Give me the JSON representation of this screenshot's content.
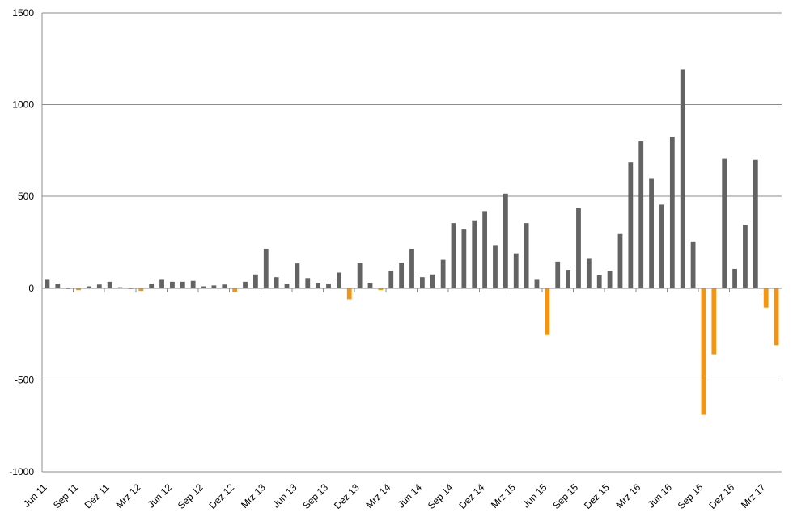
{
  "chart_data": {
    "type": "bar",
    "title": "",
    "xlabel": "",
    "ylabel": "",
    "ylim": [
      -1000,
      1500
    ],
    "y_ticks": [
      -1000,
      -500,
      0,
      500,
      1000,
      1500
    ],
    "y_tick_labels": [
      "-1000",
      "-500",
      "0",
      "500",
      "1000",
      "1500"
    ],
    "grid": "horizontal",
    "legend": "none",
    "colors": {
      "positive": "#636363",
      "negative": "#f39512",
      "grid": "#8c8c8c",
      "axis": "#8c8c8c",
      "text": "#000000"
    },
    "categories": [
      "Jun 11",
      "Jul 11",
      "Aug 11",
      "Sep 11",
      "Okt 11",
      "Nov 11",
      "Dez 11",
      "Jan 12",
      "Feb 12",
      "Mrz 12",
      "Apr 12",
      "Mai 12",
      "Jun 12",
      "Jul 12",
      "Aug 12",
      "Sep 12",
      "Okt 12",
      "Nov 12",
      "Dez 12",
      "Jan 13",
      "Feb 13",
      "Mrz 13",
      "Apr 13",
      "Mai 13",
      "Jun 13",
      "Jul 13",
      "Aug 13",
      "Sep 13",
      "Okt 13",
      "Nov 13",
      "Dez 13",
      "Jan 14",
      "Feb 14",
      "Mrz 14",
      "Apr 14",
      "Mai 14",
      "Jun 14",
      "Jul 14",
      "Aug 14",
      "Sep 14",
      "Okt 14",
      "Nov 14",
      "Dez 14",
      "Jan 15",
      "Feb 15",
      "Mrz 15",
      "Apr 15",
      "Mai 15",
      "Jun 15",
      "Jul 15",
      "Aug 15",
      "Sep 15",
      "Okt 15",
      "Nov 15",
      "Dez 15",
      "Jan 16",
      "Feb 16",
      "Mrz 16",
      "Apr 16",
      "Mai 16",
      "Jun 16",
      "Jul 16",
      "Aug 16",
      "Sep 16",
      "Okt 16",
      "Nov 16",
      "Dez 16",
      "Jan 17",
      "Feb 17",
      "Mrz 17",
      "Apr 17"
    ],
    "tick_labels": [
      "Jun 11",
      "Sep 11",
      "Dez 11",
      "Mrz 12",
      "Jun 12",
      "Sep 12",
      "Dez 12",
      "Mrz 13",
      "Jun 13",
      "Sep 13",
      "Dez 13",
      "Mrz 14",
      "Jun 14",
      "Sep 14",
      "Dez 14",
      "Mrz 15",
      "Jun 15",
      "Sep 15",
      "Dez 15",
      "Mrz 16",
      "Jun 16",
      "Sep 16",
      "Dez 16",
      "Mrz 17"
    ],
    "values": [
      50,
      25,
      0,
      -10,
      10,
      20,
      35,
      5,
      0,
      -15,
      25,
      50,
      35,
      35,
      40,
      10,
      15,
      20,
      -20,
      35,
      75,
      215,
      60,
      25,
      135,
      55,
      30,
      25,
      85,
      -60,
      140,
      30,
      -10,
      95,
      140,
      215,
      60,
      75,
      155,
      355,
      320,
      370,
      420,
      235,
      515,
      190,
      355,
      50,
      -255,
      145,
      100,
      435,
      160,
      70,
      95,
      295,
      685,
      800,
      600,
      455,
      825,
      1190,
      255,
      -690,
      -360,
      705,
      105,
      345,
      700,
      -105,
      -310
    ]
  }
}
